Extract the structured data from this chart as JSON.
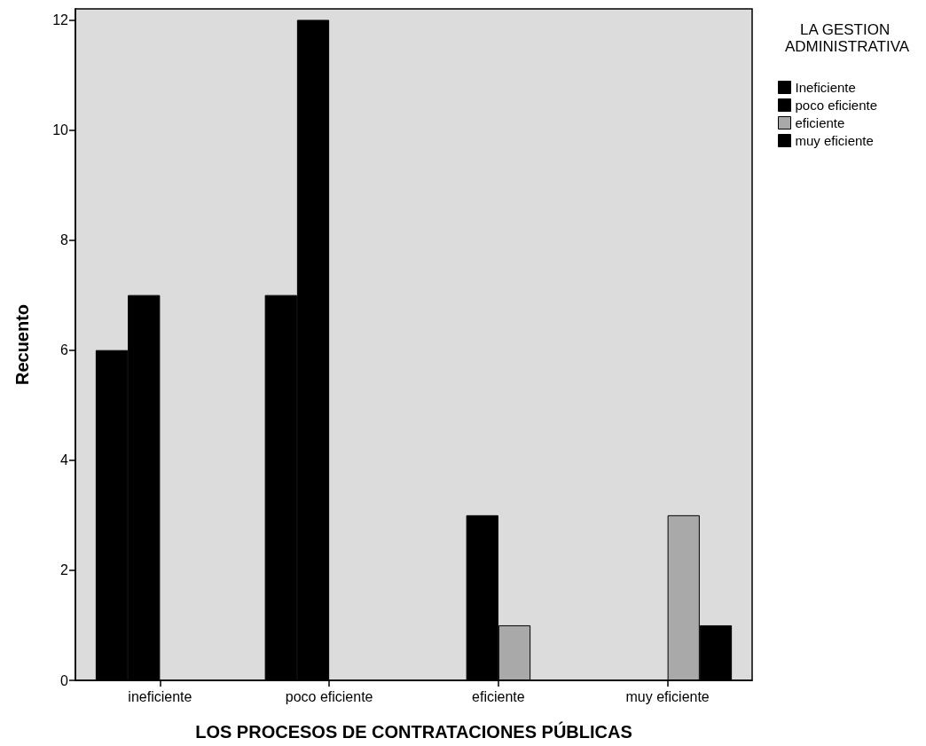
{
  "chart_data": {
    "type": "bar",
    "xlabel": "LOS PROCESOS DE CONTRATACIONES PÚBLICAS",
    "ylabel": "Recuento",
    "legend_title": "LA GESTION ADMINISTRATIVA",
    "categories": [
      "ineficiente",
      "poco eficiente",
      "eficiente",
      "muy eficiente"
    ],
    "series": [
      {
        "name": "Ineficiente",
        "color": "#000000",
        "values": [
          6,
          7,
          null,
          null
        ]
      },
      {
        "name": "poco eficiente",
        "color": "#000000",
        "values": [
          7,
          12,
          3,
          null
        ]
      },
      {
        "name": "eficiente",
        "color": "#a9a9a9",
        "values": [
          null,
          null,
          1,
          3
        ]
      },
      {
        "name": "muy eficiente",
        "color": "#000000",
        "values": [
          null,
          null,
          null,
          1
        ]
      }
    ],
    "ylim": [
      0,
      12.2
    ],
    "yticks": [
      0,
      2,
      4,
      6,
      8,
      10,
      12
    ],
    "grid": false,
    "legend": "top right"
  }
}
